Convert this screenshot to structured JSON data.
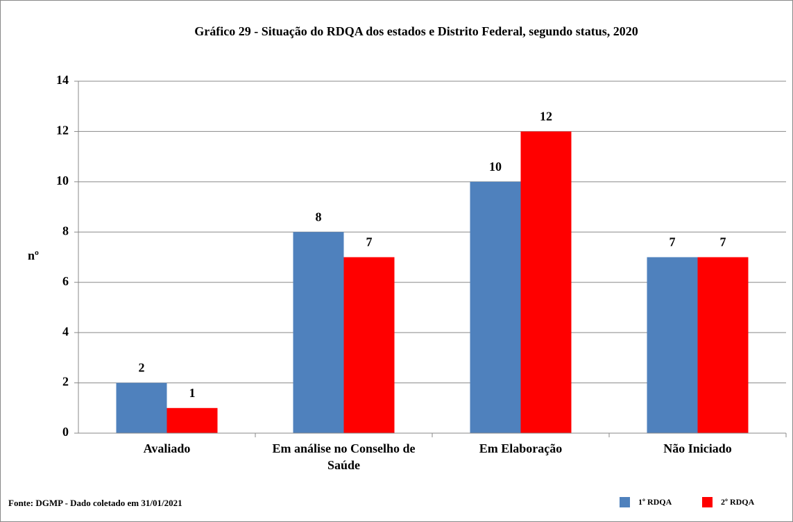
{
  "chart_data": {
    "type": "bar",
    "title": "Gráfico 29 - Situação do RDQA dos estados e Distrito Federal,  segundo status, 2020",
    "y_label": "nº",
    "source": "Fonte: DGMP - Dado coletado em 31/01/2021",
    "categories": [
      "Avaliado",
      "Em análise no Conselho de Saúde",
      "Em Elaboração",
      "Não Iniciado"
    ],
    "series": [
      {
        "name": "1º RDQA",
        "color": "#4f81bd",
        "values": [
          2,
          8,
          10,
          7
        ]
      },
      {
        "name": "2º RDQA",
        "color": "#ff0000",
        "values": [
          1,
          7,
          12,
          7
        ]
      }
    ],
    "ylim": [
      0,
      14
    ],
    "yticks": [
      0,
      2,
      4,
      6,
      8,
      10,
      12,
      14
    ],
    "grid": true,
    "legend": "bottom-right"
  }
}
